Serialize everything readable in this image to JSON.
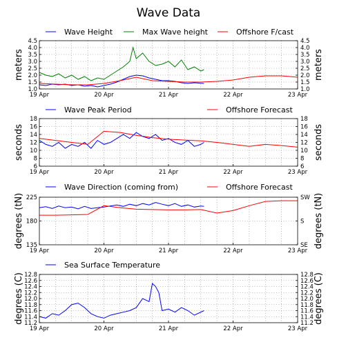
{
  "title": "Wave Data",
  "colors": {
    "blue": "#0000ff",
    "green": "#008000",
    "red": "#ff0000"
  },
  "chart_data": [
    {
      "type": "line",
      "xlabels": [
        "19 Apr",
        "20 Apr",
        "21 Apr",
        "22 Apr",
        "23 Apr"
      ],
      "xlim": [
        0,
        4
      ],
      "ylim": [
        1.0,
        4.5
      ],
      "yticks": [
        "1.0",
        "1.5",
        "2.0",
        "2.5",
        "3.0",
        "3.5",
        "4.0",
        "4.5"
      ],
      "yticks_right": [
        "1.0",
        "1.5",
        "2.0",
        "2.5",
        "3.0",
        "3.5",
        "4.0",
        "4.5"
      ],
      "ylabel_left": "meters",
      "ylabel_right": "meters",
      "legend": [
        "Wave Height",
        "Max Wave height",
        "Offshore F/cast"
      ],
      "series": [
        {
          "name": "Wave Height",
          "color": "blue",
          "x": [
            0,
            0.1,
            0.2,
            0.3,
            0.4,
            0.5,
            0.6,
            0.7,
            0.8,
            0.9,
            1.0,
            1.1,
            1.2,
            1.3,
            1.4,
            1.5,
            1.6,
            1.7,
            1.8,
            1.9,
            2.0,
            2.1,
            2.2,
            2.3,
            2.4,
            2.55
          ],
          "y": [
            1.3,
            1.25,
            1.35,
            1.3,
            1.35,
            1.25,
            1.3,
            1.2,
            1.25,
            1.15,
            1.25,
            1.35,
            1.5,
            1.7,
            1.9,
            2.0,
            1.95,
            1.8,
            1.7,
            1.6,
            1.6,
            1.55,
            1.45,
            1.4,
            1.45,
            1.4
          ]
        },
        {
          "name": "Max Wave height",
          "color": "green",
          "x": [
            0,
            0.1,
            0.2,
            0.3,
            0.4,
            0.5,
            0.6,
            0.7,
            0.8,
            0.9,
            1.0,
            1.1,
            1.2,
            1.3,
            1.4,
            1.45,
            1.5,
            1.6,
            1.7,
            1.8,
            1.9,
            2.0,
            2.1,
            2.2,
            2.3,
            2.4,
            2.5,
            2.55
          ],
          "y": [
            2.2,
            2.0,
            1.9,
            2.1,
            1.8,
            2.0,
            1.7,
            1.9,
            1.6,
            1.8,
            1.7,
            2.0,
            2.3,
            2.6,
            3.0,
            4.0,
            3.2,
            3.6,
            3.0,
            2.7,
            2.8,
            3.0,
            2.6,
            3.1,
            2.4,
            2.6,
            2.3,
            2.4
          ]
        },
        {
          "name": "Offshore F/cast",
          "color": "red",
          "x": [
            0,
            0.25,
            0.5,
            0.75,
            1.0,
            1.25,
            1.5,
            1.75,
            2.0,
            2.25,
            2.5,
            2.75,
            3.0,
            3.25,
            3.5,
            3.75,
            4.0
          ],
          "y": [
            1.4,
            1.35,
            1.3,
            1.3,
            1.4,
            1.6,
            1.85,
            1.6,
            1.55,
            1.5,
            1.5,
            1.55,
            1.65,
            1.85,
            1.95,
            1.95,
            1.85
          ]
        }
      ]
    },
    {
      "type": "line",
      "xlabels": [
        "19 Apr",
        "20 Apr",
        "21 Apr",
        "22 Apr",
        "23 Apr"
      ],
      "xlim": [
        0,
        4
      ],
      "ylim": [
        6,
        18
      ],
      "yticks": [
        "6",
        "8",
        "10",
        "12",
        "14",
        "16",
        "18"
      ],
      "yticks_right": [
        "6",
        "8",
        "10",
        "12",
        "14",
        "16",
        "18"
      ],
      "ylabel_left": "seconds",
      "ylabel_right": "seconds",
      "legend": [
        "Wave Peak Period",
        "Offshore Forecast"
      ],
      "series": [
        {
          "name": "Wave Peak Period",
          "color": "blue",
          "x": [
            0,
            0.1,
            0.2,
            0.3,
            0.4,
            0.5,
            0.6,
            0.7,
            0.8,
            0.9,
            1.0,
            1.1,
            1.2,
            1.3,
            1.4,
            1.5,
            1.6,
            1.7,
            1.8,
            1.9,
            2.0,
            2.1,
            2.2,
            2.3,
            2.4,
            2.5,
            2.55
          ],
          "y": [
            12.5,
            11.5,
            11.0,
            12.0,
            10.5,
            11.5,
            11.0,
            12.0,
            10.5,
            12.5,
            11.5,
            12.0,
            13.0,
            14.0,
            13.0,
            14.5,
            13.5,
            13.0,
            14.0,
            12.5,
            13.0,
            12.0,
            11.5,
            12.5,
            11.0,
            11.5,
            12.0
          ]
        },
        {
          "name": "Offshore Forecast",
          "color": "red",
          "x": [
            0,
            0.25,
            0.5,
            0.75,
            1.0,
            1.25,
            1.5,
            1.75,
            2.0,
            2.25,
            2.5,
            2.75,
            3.0,
            3.25,
            3.5,
            3.75,
            4.0
          ],
          "y": [
            13.0,
            12.5,
            12.0,
            11.5,
            14.8,
            14.5,
            13.8,
            13.2,
            12.8,
            12.6,
            12.4,
            12.0,
            11.5,
            11.0,
            11.5,
            11.2,
            10.8
          ]
        }
      ]
    },
    {
      "type": "line",
      "xlabels": [
        "19 Apr",
        "20 Apr",
        "21 Apr",
        "22 Apr",
        "23 Apr"
      ],
      "xlim": [
        0,
        4
      ],
      "ylim": [
        135,
        270
      ],
      "yticks": [
        "135",
        "180",
        "225"
      ],
      "yticks_right": [
        "SE",
        "S",
        "SW"
      ],
      "ylabel_left": "degrees (tN)",
      "ylabel_right": "degrees (tN)",
      "legend": [
        "Wave Direction (coming from)",
        "Offshore Forecast"
      ],
      "series": [
        {
          "name": "Wave Direction (coming from)",
          "color": "blue",
          "x": [
            0,
            0.1,
            0.2,
            0.3,
            0.4,
            0.5,
            0.6,
            0.7,
            0.8,
            0.9,
            1.0,
            1.1,
            1.2,
            1.3,
            1.4,
            1.5,
            1.6,
            1.7,
            1.8,
            1.9,
            2.0,
            2.1,
            2.2,
            2.3,
            2.4,
            2.5,
            2.55
          ],
          "y": [
            240,
            243,
            238,
            245,
            240,
            242,
            237,
            244,
            238,
            240,
            242,
            245,
            248,
            244,
            250,
            246,
            252,
            248,
            255,
            250,
            246,
            252,
            244,
            248,
            242,
            245,
            244
          ]
        },
        {
          "name": "Offshore Forecast",
          "color": "red",
          "x": [
            0,
            0.25,
            0.5,
            0.75,
            1.0,
            1.25,
            1.5,
            1.75,
            2.0,
            2.25,
            2.5,
            2.75,
            3.0,
            3.25,
            3.5,
            3.75,
            4.0
          ],
          "y": [
            219,
            219,
            220,
            221,
            246,
            240,
            236,
            235,
            234,
            234,
            235,
            225,
            232,
            246,
            258,
            260,
            260
          ]
        }
      ]
    },
    {
      "type": "line",
      "xlabels": [
        "19 Apr",
        "20 Apr",
        "21 Apr",
        "22 Apr",
        "23 Apr"
      ],
      "xlim": [
        0,
        4
      ],
      "ylim": [
        11.2,
        12.8
      ],
      "yticks": [
        "11.2",
        "11.4",
        "11.6",
        "11.8",
        "12.0",
        "12.2",
        "12.4",
        "12.6",
        "12.8"
      ],
      "yticks_right": [
        "11.2",
        "11.4",
        "11.6",
        "11.8",
        "12.0",
        "12.2",
        "12.4",
        "12.6",
        "12.8"
      ],
      "ylabel_left": "degrees (C)",
      "ylabel_right": "degrees (C)",
      "legend": [
        "Sea Surface Temperature"
      ],
      "series": [
        {
          "name": "Sea Surface Temperature",
          "color": "blue",
          "x": [
            0,
            0.1,
            0.2,
            0.3,
            0.4,
            0.5,
            0.6,
            0.7,
            0.8,
            0.9,
            1.0,
            1.1,
            1.2,
            1.3,
            1.4,
            1.5,
            1.6,
            1.7,
            1.75,
            1.8,
            1.85,
            1.9,
            2.0,
            2.1,
            2.2,
            2.3,
            2.4,
            2.55
          ],
          "y": [
            11.4,
            11.35,
            11.5,
            11.45,
            11.6,
            11.8,
            11.85,
            11.7,
            11.5,
            11.4,
            11.35,
            11.45,
            11.5,
            11.55,
            11.6,
            11.7,
            12.0,
            11.9,
            12.5,
            12.4,
            12.2,
            11.6,
            11.65,
            11.55,
            11.7,
            11.6,
            11.45,
            11.6
          ]
        }
      ]
    }
  ]
}
